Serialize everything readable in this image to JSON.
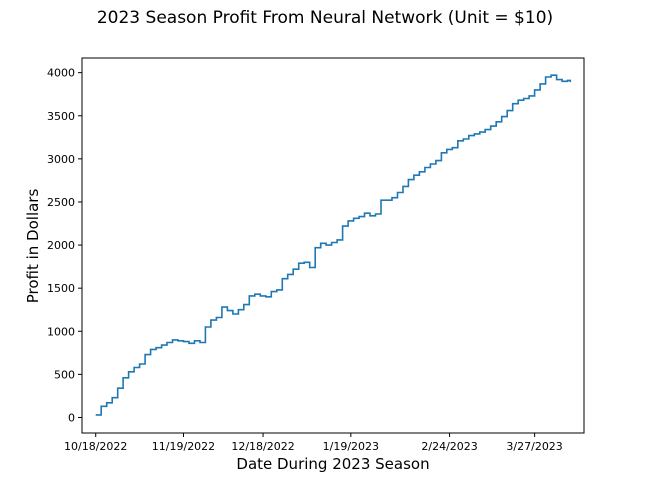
{
  "chart_data": {
    "type": "line",
    "title": "2023 Season Profit From Neural Network (Unit = $10)",
    "xlabel": "Date During 2023 Season",
    "ylabel": "Profit in Dollars",
    "x_tick_labels": [
      "10/18/2022",
      "11/19/2022",
      "12/18/2022",
      "1/19/2023",
      "2/24/2023",
      "3/27/2023"
    ],
    "y_tick_labels": [
      "0",
      "500",
      "1000",
      "1500",
      "2000",
      "2500",
      "3000",
      "3500",
      "4000"
    ],
    "xlim": [
      "2022-10-13",
      "2023-04-14"
    ],
    "ylim": [
      -180,
      4170
    ],
    "grid": false,
    "series": [
      {
        "color": "#1f77b4",
        "x": [
          "2022-10-18",
          "2022-10-20",
          "2022-10-22",
          "2022-10-24",
          "2022-10-26",
          "2022-10-28",
          "2022-10-30",
          "2022-11-01",
          "2022-11-03",
          "2022-11-05",
          "2022-11-07",
          "2022-11-09",
          "2022-11-11",
          "2022-11-13",
          "2022-11-15",
          "2022-11-17",
          "2022-11-19",
          "2022-11-21",
          "2022-11-23",
          "2022-11-25",
          "2022-11-27",
          "2022-11-29",
          "2022-12-01",
          "2022-12-03",
          "2022-12-05",
          "2022-12-07",
          "2022-12-09",
          "2022-12-11",
          "2022-12-13",
          "2022-12-15",
          "2022-12-17",
          "2022-12-19",
          "2022-12-21",
          "2022-12-23",
          "2022-12-25",
          "2022-12-27",
          "2022-12-29",
          "2022-12-31",
          "2023-01-02",
          "2023-01-04",
          "2023-01-06",
          "2023-01-08",
          "2023-01-10",
          "2023-01-12",
          "2023-01-14",
          "2023-01-16",
          "2023-01-18",
          "2023-01-20",
          "2023-01-22",
          "2023-01-24",
          "2023-01-26",
          "2023-01-28",
          "2023-01-30",
          "2023-02-01",
          "2023-02-03",
          "2023-02-05",
          "2023-02-07",
          "2023-02-09",
          "2023-02-11",
          "2023-02-13",
          "2023-02-15",
          "2023-02-17",
          "2023-02-19",
          "2023-02-21",
          "2023-02-23",
          "2023-02-25",
          "2023-02-27",
          "2023-03-01",
          "2023-03-03",
          "2023-03-05",
          "2023-03-07",
          "2023-03-09",
          "2023-03-11",
          "2023-03-13",
          "2023-03-15",
          "2023-03-17",
          "2023-03-19",
          "2023-03-21",
          "2023-03-23",
          "2023-03-25",
          "2023-03-27",
          "2023-03-29",
          "2023-03-31",
          "2023-04-02",
          "2023-04-04",
          "2023-04-06",
          "2023-04-08",
          "2023-04-09"
        ],
        "y": [
          30,
          130,
          170,
          230,
          340,
          460,
          530,
          580,
          620,
          730,
          790,
          810,
          840,
          870,
          900,
          890,
          880,
          860,
          890,
          870,
          1050,
          1130,
          1160,
          1280,
          1240,
          1200,
          1250,
          1310,
          1410,
          1430,
          1410,
          1400,
          1460,
          1480,
          1610,
          1660,
          1720,
          1790,
          1800,
          1740,
          1970,
          2020,
          2000,
          2030,
          2060,
          2220,
          2280,
          2310,
          2330,
          2370,
          2340,
          2360,
          2520,
          2520,
          2550,
          2610,
          2680,
          2760,
          2810,
          2850,
          2900,
          2940,
          2980,
          3070,
          3110,
          3130,
          3210,
          3230,
          3270,
          3290,
          3310,
          3340,
          3380,
          3430,
          3490,
          3560,
          3640,
          3680,
          3700,
          3730,
          3800,
          3870,
          3950,
          3970,
          3920,
          3900,
          3910,
          3890
        ]
      }
    ]
  }
}
